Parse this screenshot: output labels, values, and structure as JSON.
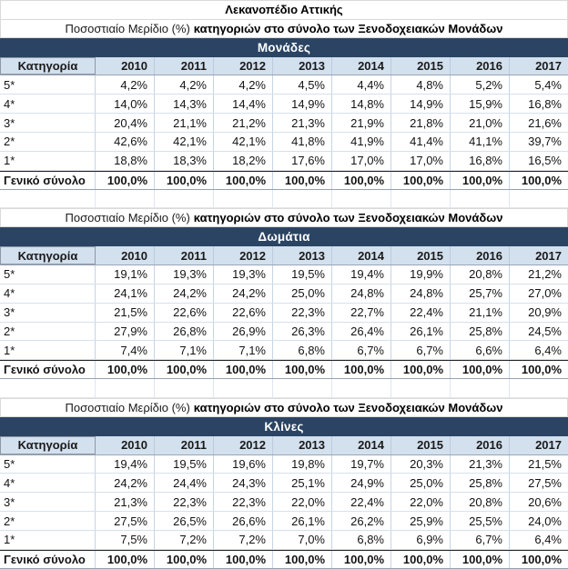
{
  "title": "Λεκανοπέδιο Αττικής",
  "subtitle": {
    "regular": "Ποσοστιαίο Μερίδιο (%)",
    "bold": "κατηγοριών στο σύνολο των Ξενοδοχειακών Μονάδων"
  },
  "columns": {
    "category": "Κατηγορία",
    "years": [
      "2010",
      "2011",
      "2012",
      "2013",
      "2014",
      "2015",
      "2016",
      "2017"
    ]
  },
  "colors": {
    "band_background": "#2b4463",
    "band_text": "#ffffff",
    "header_row_background": "#d3e0ee",
    "grid_line": "#c6d4e4"
  },
  "chart_data": [
    {
      "type": "table",
      "title": "Μονάδες",
      "subtitle": "Ποσοστιαίο Μερίδιο (%) κατηγοριών στο σύνολο των Ξενοδοχειακών Μονάδων",
      "columns": [
        "Κατηγορία",
        "2010",
        "2011",
        "2012",
        "2013",
        "2014",
        "2015",
        "2016",
        "2017"
      ],
      "rows": [
        {
          "label": "5*",
          "values": [
            "4,2%",
            "4,2%",
            "4,2%",
            "4,5%",
            "4,4%",
            "4,8%",
            "5,2%",
            "5,4%"
          ]
        },
        {
          "label": "4*",
          "values": [
            "14,0%",
            "14,3%",
            "14,4%",
            "14,9%",
            "14,8%",
            "14,9%",
            "15,9%",
            "16,8%"
          ]
        },
        {
          "label": "3*",
          "values": [
            "20,4%",
            "21,1%",
            "21,2%",
            "21,3%",
            "21,9%",
            "21,8%",
            "21,0%",
            "21,6%"
          ]
        },
        {
          "label": "2*",
          "values": [
            "42,6%",
            "42,1%",
            "42,1%",
            "41,8%",
            "41,9%",
            "41,4%",
            "41,1%",
            "39,7%"
          ]
        },
        {
          "label": "1*",
          "values": [
            "18,8%",
            "18,3%",
            "18,2%",
            "17,6%",
            "17,0%",
            "17,0%",
            "16,8%",
            "16,5%"
          ]
        },
        {
          "label": "Γενικό σύνολο",
          "values": [
            "100,0%",
            "100,0%",
            "100,0%",
            "100,0%",
            "100,0%",
            "100,0%",
            "100,0%",
            "100,0%"
          ],
          "is_total": true
        }
      ]
    },
    {
      "type": "table",
      "title": "Δωμάτια",
      "subtitle": "Ποσοστιαίο Μερίδιο (%) κατηγοριών στο σύνολο των Ξενοδοχειακών Μονάδων",
      "columns": [
        "Κατηγορία",
        "2010",
        "2011",
        "2012",
        "2013",
        "2014",
        "2015",
        "2016",
        "2017"
      ],
      "rows": [
        {
          "label": "5*",
          "values": [
            "19,1%",
            "19,3%",
            "19,3%",
            "19,5%",
            "19,4%",
            "19,9%",
            "20,8%",
            "21,2%"
          ]
        },
        {
          "label": "4*",
          "values": [
            "24,1%",
            "24,2%",
            "24,2%",
            "25,0%",
            "24,8%",
            "24,8%",
            "25,7%",
            "27,0%"
          ]
        },
        {
          "label": "3*",
          "values": [
            "21,5%",
            "22,6%",
            "22,6%",
            "22,3%",
            "22,7%",
            "22,4%",
            "21,1%",
            "20,9%"
          ]
        },
        {
          "label": "2*",
          "values": [
            "27,9%",
            "26,8%",
            "26,9%",
            "26,3%",
            "26,4%",
            "26,1%",
            "25,8%",
            "24,5%"
          ]
        },
        {
          "label": "1*",
          "values": [
            "7,4%",
            "7,1%",
            "7,1%",
            "6,8%",
            "6,7%",
            "6,7%",
            "6,6%",
            "6,4%"
          ]
        },
        {
          "label": "Γενικό σύνολο",
          "values": [
            "100,0%",
            "100,0%",
            "100,0%",
            "100,0%",
            "100,0%",
            "100,0%",
            "100,0%",
            "100,0%"
          ],
          "is_total": true
        }
      ]
    },
    {
      "type": "table",
      "title": "Κλίνες",
      "subtitle": "Ποσοστιαίο Μερίδιο (%) κατηγοριών στο σύνολο των Ξενοδοχειακών Μονάδων",
      "columns": [
        "Κατηγορία",
        "2010",
        "2011",
        "2012",
        "2013",
        "2014",
        "2015",
        "2016",
        "2017"
      ],
      "rows": [
        {
          "label": "5*",
          "values": [
            "19,4%",
            "19,5%",
            "19,6%",
            "19,8%",
            "19,7%",
            "20,3%",
            "21,3%",
            "21,5%"
          ]
        },
        {
          "label": "4*",
          "values": [
            "24,2%",
            "24,4%",
            "24,3%",
            "25,1%",
            "24,9%",
            "25,0%",
            "25,8%",
            "27,5%"
          ]
        },
        {
          "label": "3*",
          "values": [
            "21,3%",
            "22,3%",
            "22,3%",
            "22,0%",
            "22,4%",
            "22,0%",
            "20,8%",
            "20,6%"
          ]
        },
        {
          "label": "2*",
          "values": [
            "27,5%",
            "26,5%",
            "26,6%",
            "26,1%",
            "26,2%",
            "25,9%",
            "25,5%",
            "24,0%"
          ]
        },
        {
          "label": "1*",
          "values": [
            "7,5%",
            "7,2%",
            "7,2%",
            "7,0%",
            "6,8%",
            "6,9%",
            "6,7%",
            "6,4%"
          ]
        },
        {
          "label": "Γενικό σύνολο",
          "values": [
            "100,0%",
            "100,0%",
            "100,0%",
            "100,0%",
            "100,0%",
            "100,0%",
            "100,0%",
            "100,0%"
          ],
          "is_total": true
        }
      ]
    }
  ]
}
